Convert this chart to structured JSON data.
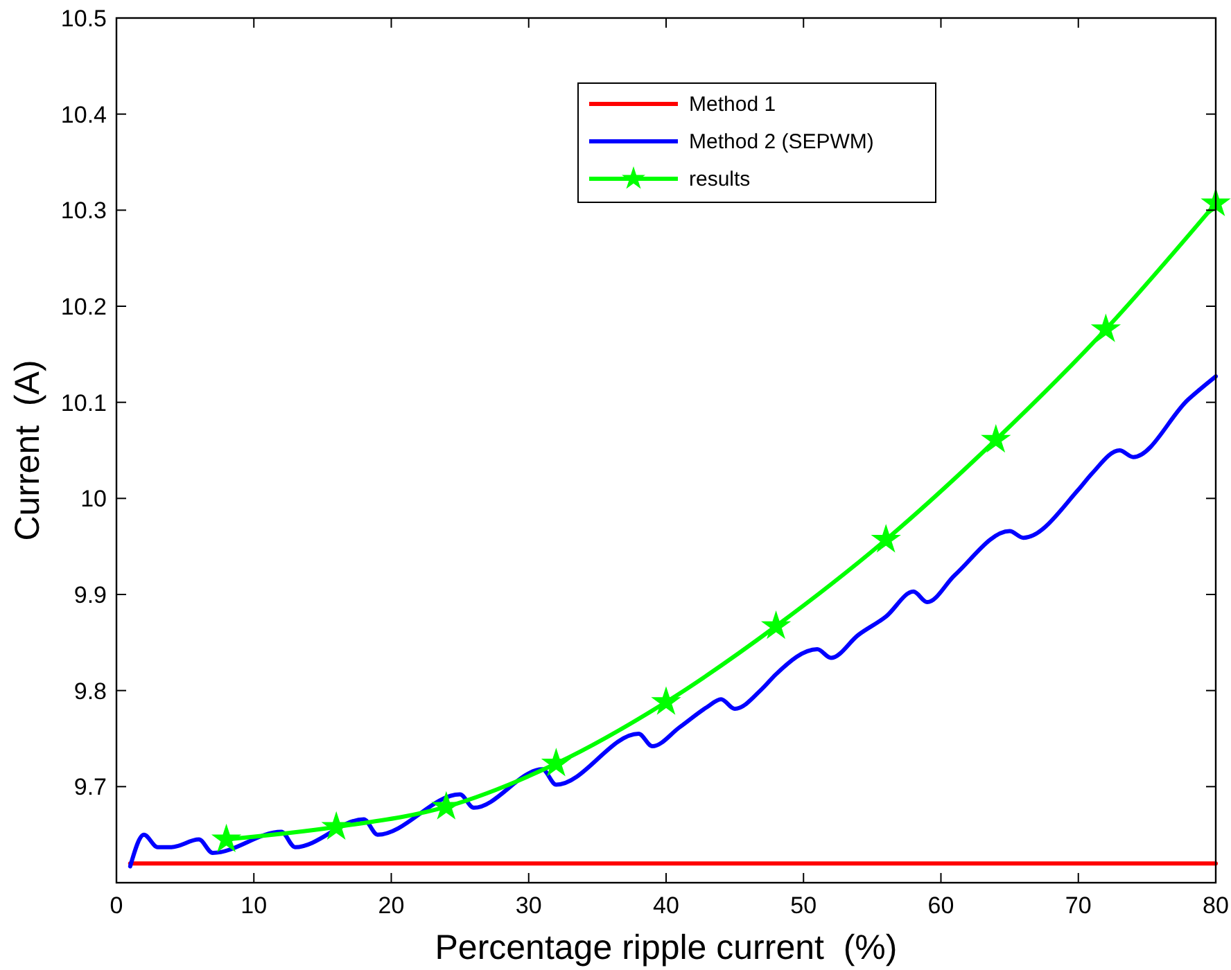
{
  "chart_data": {
    "type": "line",
    "xlabel": "Percentage ripple current  (%)",
    "ylabel": "Current  (A)",
    "xlim": [
      0,
      80
    ],
    "xticks": [
      0,
      10,
      20,
      30,
      40,
      50,
      60,
      70,
      80
    ],
    "ylim": [
      9.6,
      10.5
    ],
    "yticks": [
      9.7,
      9.8,
      9.9,
      10,
      10.1,
      10.2,
      10.3,
      10.4,
      10.5
    ],
    "grid": false,
    "legend": "top right",
    "line_style": "solid",
    "series": [
      {
        "name": "Method 1",
        "color": "#ff0000",
        "marker": "none",
        "x": [
          1,
          80
        ],
        "values": [
          9.62,
          9.62
        ]
      },
      {
        "name": "Method 2 (SEPWM)",
        "color": "#0000ff",
        "marker": "none",
        "x": [
          1,
          2,
          3,
          4,
          6,
          7,
          12,
          13,
          18,
          19,
          25,
          26,
          31,
          32,
          38,
          39,
          41,
          43,
          44,
          45,
          47,
          48,
          51,
          52,
          54,
          56,
          58,
          59,
          61,
          65,
          66,
          70,
          71,
          73,
          74,
          78,
          80
        ],
        "values": [
          9.617,
          9.65,
          9.637,
          9.637,
          9.645,
          9.631,
          9.653,
          9.637,
          9.666,
          9.65,
          9.692,
          9.678,
          9.718,
          9.702,
          9.755,
          9.742,
          9.762,
          9.783,
          9.791,
          9.781,
          9.802,
          9.817,
          9.843,
          9.834,
          9.858,
          9.877,
          9.903,
          9.892,
          9.92,
          9.966,
          9.959,
          10.009,
          10.026,
          10.05,
          10.043,
          10.103,
          10.127
        ]
      },
      {
        "name": "results",
        "color": "#00ff00",
        "marker": "star",
        "x": [
          8,
          16,
          24,
          32,
          40,
          48,
          56,
          64,
          72,
          80
        ],
        "values": [
          9.645,
          9.658,
          9.679,
          9.724,
          9.788,
          9.867,
          9.957,
          10.061,
          10.176,
          10.307
        ]
      }
    ]
  }
}
